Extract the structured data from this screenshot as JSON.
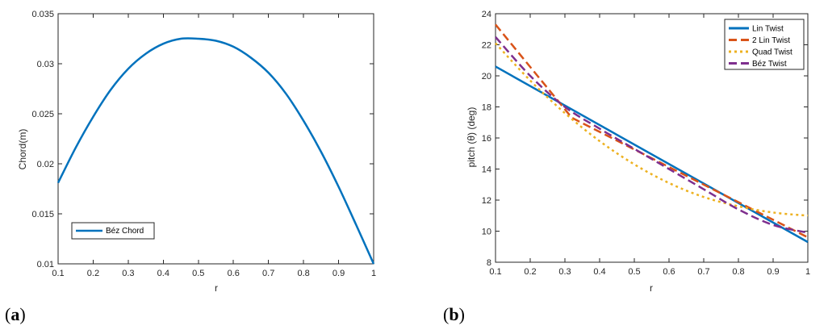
{
  "panels": [
    {
      "label_open": "(",
      "label_letter": "a",
      "label_close": ")"
    },
    {
      "label_open": "(",
      "label_letter": "b",
      "label_close": ")"
    }
  ],
  "chart_data": [
    {
      "type": "line",
      "xlabel": "r",
      "ylabel": "Chord(m)",
      "xlim": [
        0.1,
        1
      ],
      "ylim": [
        0.01,
        0.035
      ],
      "xticks": [
        "0.1",
        "0.2",
        "0.3",
        "0.4",
        "0.5",
        "0.6",
        "0.7",
        "0.8",
        "0.9",
        "1"
      ],
      "yticks": [
        "0.01",
        "0.015",
        "0.02",
        "0.025",
        "0.03",
        "0.035"
      ],
      "legend_position": "bottom-left",
      "series": [
        {
          "name": "Béz Chord",
          "color": "#0072BD",
          "style": "solid",
          "x": [
            0.1,
            0.15,
            0.2,
            0.25,
            0.3,
            0.35,
            0.4,
            0.45,
            0.5,
            0.55,
            0.6,
            0.65,
            0.7,
            0.75,
            0.8,
            0.85,
            0.9,
            0.95,
            1.0
          ],
          "y": [
            0.0181,
            0.0216,
            0.0247,
            0.0274,
            0.0295,
            0.031,
            0.032,
            0.0325,
            0.0325,
            0.0323,
            0.0317,
            0.0306,
            0.0291,
            0.027,
            0.0243,
            0.0212,
            0.0177,
            0.0139,
            0.01
          ]
        }
      ]
    },
    {
      "type": "line",
      "xlabel": "r",
      "ylabel": "pitch (θ) (deg)",
      "xlim": [
        0.1,
        1
      ],
      "ylim": [
        8,
        24
      ],
      "xticks": [
        "0.1",
        "0.2",
        "0.3",
        "0.4",
        "0.5",
        "0.6",
        "0.7",
        "0.8",
        "0.9",
        "1"
      ],
      "yticks": [
        "8",
        "10",
        "12",
        "14",
        "16",
        "18",
        "20",
        "22",
        "24"
      ],
      "legend_position": "top-right",
      "series": [
        {
          "name": "Lin Twist",
          "color": "#0072BD",
          "style": "solid",
          "x": [
            0.1,
            1.0
          ],
          "y": [
            20.6,
            9.3
          ]
        },
        {
          "name": "2 Lin Twist",
          "color": "#D95319",
          "style": "dashed",
          "x": [
            0.1,
            0.32,
            1.0
          ],
          "y": [
            23.3,
            17.3,
            9.6
          ]
        },
        {
          "name": "Quad Twist",
          "color": "#EDB120",
          "style": "dotted",
          "x": [
            0.1,
            0.2,
            0.3,
            0.4,
            0.5,
            0.6,
            0.7,
            0.8,
            0.9,
            1.0
          ],
          "y": [
            22.1,
            19.7,
            17.6,
            15.8,
            14.3,
            13.1,
            12.2,
            11.6,
            11.2,
            11.0
          ]
        },
        {
          "name": "Béz Twist",
          "color": "#7E2F8E",
          "style": "dashed",
          "x": [
            0.1,
            0.2,
            0.3,
            0.4,
            0.5,
            0.6,
            0.7,
            0.8,
            0.9,
            1.0
          ],
          "y": [
            22.5,
            20.0,
            18.0,
            16.6,
            15.3,
            14.0,
            12.7,
            11.4,
            10.4,
            9.9
          ]
        }
      ]
    }
  ]
}
